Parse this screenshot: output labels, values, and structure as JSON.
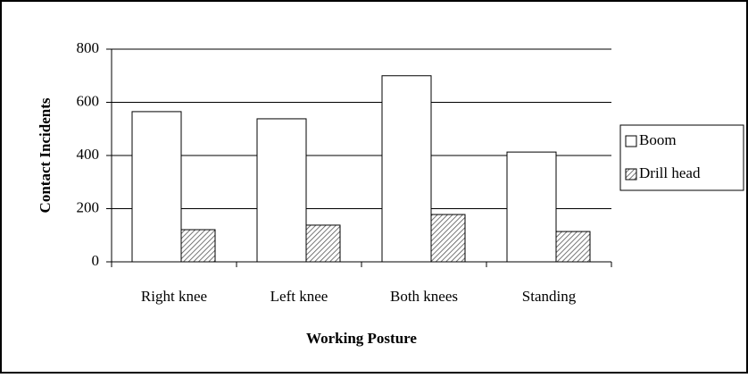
{
  "chart_data": {
    "type": "bar",
    "x_label": "Working Posture",
    "y_label": "Contact Incidents",
    "categories": [
      "Right knee",
      "Left knee",
      "Both knees",
      "Standing"
    ],
    "series": [
      {
        "name": "Boom",
        "color": "#ffffff",
        "values": [
          565,
          538,
          700,
          413
        ]
      },
      {
        "name": "Drill head",
        "color": "#ffffff",
        "pattern": "hatch",
        "values": [
          121,
          138,
          178,
          114
        ]
      }
    ],
    "ylim": [
      0,
      800
    ],
    "yticks": [
      0,
      200,
      400,
      600,
      800
    ],
    "grid": true,
    "legend": "right"
  }
}
